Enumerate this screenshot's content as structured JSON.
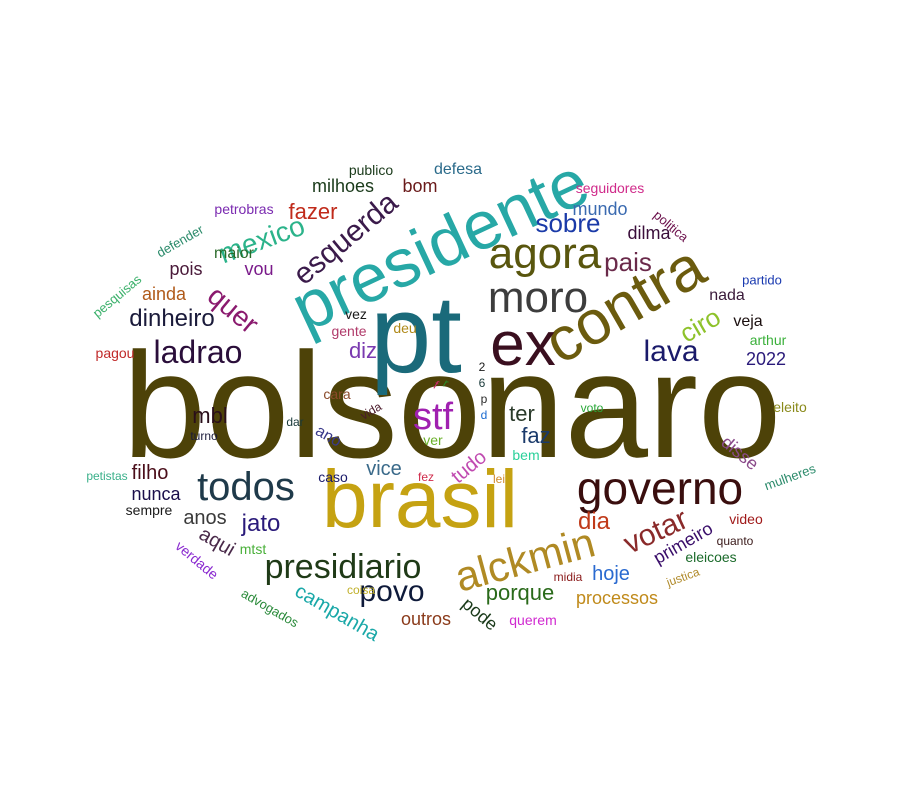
{
  "words": [
    {
      "text": "bolsonaro",
      "color": "#4d4208"
    },
    {
      "text": "pt",
      "color": "#1a6a7a"
    },
    {
      "text": "presidente",
      "color": "#27a8a6"
    },
    {
      "text": "brasil",
      "color": "#c5a212"
    },
    {
      "text": "contra",
      "color": "#6b5b0e"
    },
    {
      "text": "ex",
      "color": "#3a0f1f"
    },
    {
      "text": "moro",
      "color": "#3d3d3d"
    },
    {
      "text": "agora",
      "color": "#59560e"
    },
    {
      "text": "governo",
      "color": "#3a0e0e"
    },
    {
      "text": "alckmin",
      "color": "#b08a24"
    },
    {
      "text": "todos",
      "color": "#1f3a4a"
    },
    {
      "text": "presidiario",
      "color": "#1f3a17"
    },
    {
      "text": "stf",
      "color": "#a020b0"
    },
    {
      "text": "esquerda",
      "color": "#3a1a4a"
    },
    {
      "text": "mexico",
      "color": "#2bb38a"
    },
    {
      "text": "quer",
      "color": "#8a1a6e"
    },
    {
      "text": "ladrao",
      "color": "#2a0e3a"
    },
    {
      "text": "lava",
      "color": "#1a1a6a"
    },
    {
      "text": "votar",
      "color": "#8a2a2a"
    },
    {
      "text": "povo",
      "color": "#0e1a3a"
    },
    {
      "text": "sobre",
      "color": "#1a3aa8"
    },
    {
      "text": "pais",
      "color": "#6a2a4a"
    },
    {
      "text": "ciro",
      "color": "#8ec22a"
    },
    {
      "text": "dinheiro",
      "color": "#1a1a3a"
    },
    {
      "text": "jato",
      "color": "#2a1a7a"
    },
    {
      "text": "dia",
      "color": "#c03a1a"
    },
    {
      "text": "fazer",
      "color": "#c02a1a"
    },
    {
      "text": "diz",
      "color": "#7a3ab0"
    },
    {
      "text": "mbl",
      "color": "#2a0e1a"
    },
    {
      "text": "faz",
      "color": "#1a3a6a"
    },
    {
      "text": "ter",
      "color": "#2a3a2a"
    },
    {
      "text": "porque",
      "color": "#2a6a1a"
    },
    {
      "text": "campanha",
      "color": "#1aa8a8"
    },
    {
      "text": "hoje",
      "color": "#2a6ad0"
    },
    {
      "text": "tudo",
      "color": "#c04ab0"
    },
    {
      "text": "filho",
      "color": "#4a0e1a"
    },
    {
      "text": "anos",
      "color": "#3a3a3a"
    },
    {
      "text": "aqui",
      "color": "#4a2a4a"
    },
    {
      "text": "vice",
      "color": "#3a6a8a"
    },
    {
      "text": "nunca",
      "color": "#1a0e4a"
    },
    {
      "text": "milhoes",
      "color": "#1a3a1a"
    },
    {
      "text": "bom",
      "color": "#6a1a1a"
    },
    {
      "text": "mundo",
      "color": "#3a6ab0"
    },
    {
      "text": "dilma",
      "color": "#3a0e3a"
    },
    {
      "text": "ainda",
      "color": "#b05a1a"
    },
    {
      "text": "pois",
      "color": "#4a1a3a"
    },
    {
      "text": "vou",
      "color": "#7a1a8a"
    },
    {
      "text": "maior",
      "color": "#2a6a2a"
    },
    {
      "text": "processos",
      "color": "#c08a1a"
    },
    {
      "text": "outros",
      "color": "#8a3a1a"
    },
    {
      "text": "pode",
      "color": "#1a3a1a"
    },
    {
      "text": "primeiro",
      "color": "#3a0e6a"
    },
    {
      "text": "2022",
      "color": "#2a1a7a"
    },
    {
      "text": "veja",
      "color": "#1a0e0e"
    },
    {
      "text": "nada",
      "color": "#3a1a3a"
    },
    {
      "text": "disse",
      "color": "#8a4a8a"
    },
    {
      "text": "defesa",
      "color": "#2a6a8a"
    },
    {
      "text": "publico",
      "color": "#1a3a1a"
    },
    {
      "text": "seguidores",
      "color": "#d02a8a"
    },
    {
      "text": "petrobras",
      "color": "#7a2ab0"
    },
    {
      "text": "politica",
      "color": "#6a0e4a"
    },
    {
      "text": "partido",
      "color": "#1a3ab0"
    },
    {
      "text": "defender",
      "color": "#2a8a6a"
    },
    {
      "text": "pesquisas",
      "color": "#3ab06a"
    },
    {
      "text": "arthur",
      "color": "#3ab03a"
    },
    {
      "text": "eleito",
      "color": "#8a8a1a"
    },
    {
      "text": "deu",
      "color": "#b08a1a"
    },
    {
      "text": "gente",
      "color": "#b03a6a"
    },
    {
      "text": "vez",
      "color": "#1a1a1a"
    },
    {
      "text": "pagou",
      "color": "#c02a2a"
    },
    {
      "text": "cara",
      "color": "#8a4a2a"
    },
    {
      "text": "vida",
      "color": "#4a1a2a"
    },
    {
      "text": "dar",
      "color": "#1a3a3a"
    },
    {
      "text": "turno",
      "color": "#1a1a3a"
    },
    {
      "text": "ano",
      "color": "#3a3a8a"
    },
    {
      "text": "voto",
      "color": "#2aa83a"
    },
    {
      "text": "ver",
      "color": "#6ab02a"
    },
    {
      "text": "bem",
      "color": "#2ad09a"
    },
    {
      "text": "caso",
      "color": "#1a1a6a"
    },
    {
      "text": "fez",
      "color": "#d02a4a"
    },
    {
      "text": "lei",
      "color": "#d08a2a"
    },
    {
      "text": "sempre",
      "color": "#1a1a1a"
    },
    {
      "text": "petistas",
      "color": "#3ab08a"
    },
    {
      "text": "mulheres",
      "color": "#2a8a6a"
    },
    {
      "text": "mtst",
      "color": "#4ab03a"
    },
    {
      "text": "verdade",
      "color": "#8a2ad0"
    },
    {
      "text": "coisa",
      "color": "#c0b02a"
    },
    {
      "text": "advogados",
      "color": "#2a8a3a"
    },
    {
      "text": "querem",
      "color": "#d02ad0"
    },
    {
      "text": "midia",
      "color": "#8a1a1a"
    },
    {
      "text": "justica",
      "color": "#b08a2a"
    },
    {
      "text": "eleicoes",
      "color": "#1a6a2a"
    },
    {
      "text": "quanto",
      "color": "#3a1a1a"
    },
    {
      "text": "video",
      "color": "#a01a1a"
    },
    {
      "text": "2",
      "color": "#1a1a1a"
    },
    {
      "text": "6",
      "color": "#1a3a3a"
    },
    {
      "text": "p",
      "color": "#2a2a2a"
    },
    {
      "text": "d",
      "color": "#1a6ad0"
    },
    {
      "text": "f",
      "color": "#d02a6a"
    },
    {
      "text": "r",
      "color": "#2a8a2a"
    }
  ]
}
